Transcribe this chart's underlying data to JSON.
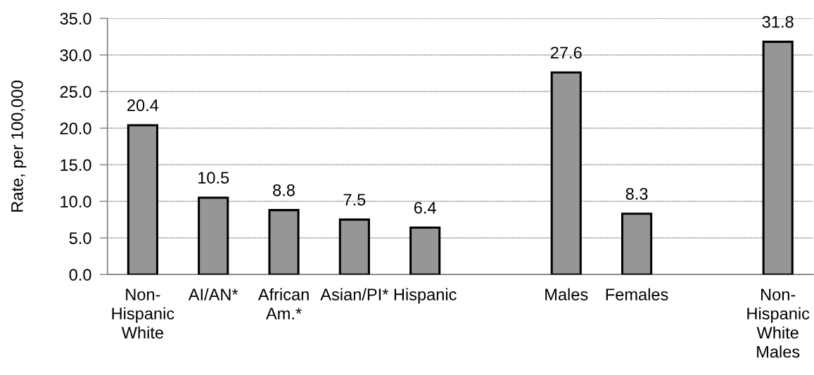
{
  "chart_data": {
    "type": "bar",
    "ylabel": "Rate, per 100,000",
    "categories": [
      "Non-\nHispanic\nWhite",
      "AI/AN*",
      "African\nAm.*",
      "Asian/PI*",
      "Hispanic",
      null,
      "Males",
      "Females",
      null,
      "Non-\nHispanic\nWhite\nMales"
    ],
    "values": [
      20.4,
      10.5,
      8.8,
      7.5,
      6.4,
      null,
      27.6,
      8.3,
      null,
      31.8
    ],
    "color": "#969696",
    "ylim": [
      0,
      35
    ],
    "yticks": [
      {
        "value": 0,
        "label": "0.0"
      },
      {
        "value": 5,
        "label": "5.0"
      },
      {
        "value": 10,
        "label": "10.0"
      },
      {
        "value": 15,
        "label": "15.0"
      },
      {
        "value": 20,
        "label": "20.0"
      },
      {
        "value": 25,
        "label": "25.0"
      },
      {
        "value": 30,
        "label": "30.0"
      },
      {
        "value": 35,
        "label": "35.0"
      }
    ],
    "grid": "y",
    "data_labels": true
  }
}
